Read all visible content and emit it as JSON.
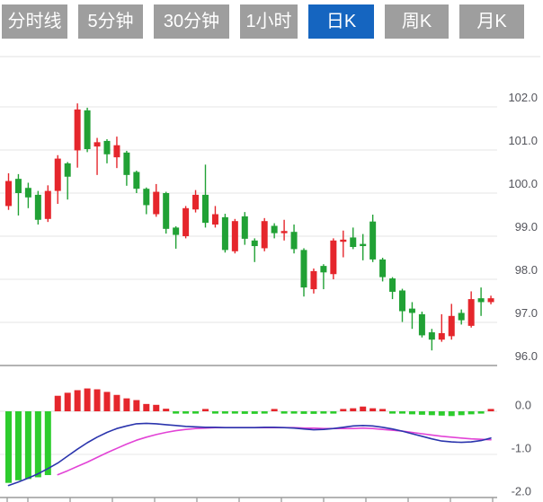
{
  "toolbar": {
    "tabs": [
      {
        "id": "tab-timeline",
        "label": "分时线",
        "active": false
      },
      {
        "id": "tab-5min",
        "label": "5分钟",
        "active": false
      },
      {
        "id": "tab-30min",
        "label": "30分钟",
        "active": false
      },
      {
        "id": "tab-1hour",
        "label": "1小时",
        "active": false
      },
      {
        "id": "tab-daily-k",
        "label": "日K",
        "active": true
      },
      {
        "id": "tab-weekly-k",
        "label": "周K",
        "active": false
      },
      {
        "id": "tab-monthly-k",
        "label": "月K",
        "active": false
      }
    ],
    "colors": {
      "tab_bg": "#9E9E9E",
      "tab_active_bg": "#1565C0",
      "tab_text": "#FFFFFF"
    }
  },
  "chart_data": {
    "type": "candlestick",
    "title": "",
    "price_axis": {
      "side": "right",
      "ticks": [
        102.0,
        101.0,
        100.0,
        99.0,
        98.0,
        97.0,
        96.0
      ],
      "tick_labels": [
        "102.0",
        "101.0",
        "100.0",
        "99.0",
        "98.0",
        "97.0",
        "96.0"
      ],
      "range": [
        95.8,
        103.2
      ],
      "grid": true
    },
    "candles": [
      {
        "o": 99.7,
        "h": 100.46,
        "l": 99.61,
        "c": 100.28
      },
      {
        "o": 100.33,
        "h": 100.44,
        "l": 99.48,
        "c": 100.0
      },
      {
        "o": 100.12,
        "h": 100.24,
        "l": 99.65,
        "c": 99.9
      },
      {
        "o": 99.96,
        "h": 100.05,
        "l": 99.27,
        "c": 99.38
      },
      {
        "o": 99.4,
        "h": 100.18,
        "l": 99.33,
        "c": 100.05
      },
      {
        "o": 100.05,
        "h": 100.88,
        "l": 99.75,
        "c": 100.8
      },
      {
        "o": 100.69,
        "h": 100.72,
        "l": 99.85,
        "c": 100.38
      },
      {
        "o": 100.99,
        "h": 102.08,
        "l": 100.59,
        "c": 101.94
      },
      {
        "o": 101.92,
        "h": 101.98,
        "l": 100.95,
        "c": 101.02
      },
      {
        "o": 101.08,
        "h": 101.28,
        "l": 100.42,
        "c": 101.18
      },
      {
        "o": 101.21,
        "h": 101.25,
        "l": 100.69,
        "c": 100.9
      },
      {
        "o": 100.83,
        "h": 101.31,
        "l": 100.58,
        "c": 101.11
      },
      {
        "o": 100.94,
        "h": 100.98,
        "l": 100.17,
        "c": 100.42
      },
      {
        "o": 100.49,
        "h": 100.52,
        "l": 100.0,
        "c": 100.1
      },
      {
        "o": 100.1,
        "h": 100.13,
        "l": 99.51,
        "c": 99.72
      },
      {
        "o": 99.51,
        "h": 100.21,
        "l": 99.45,
        "c": 100.03
      },
      {
        "o": 100.0,
        "h": 100.03,
        "l": 99.06,
        "c": 99.17
      },
      {
        "o": 99.2,
        "h": 99.23,
        "l": 98.71,
        "c": 99.03
      },
      {
        "o": 99.0,
        "h": 99.7,
        "l": 98.95,
        "c": 99.65
      },
      {
        "o": 99.62,
        "h": 100.07,
        "l": 99.55,
        "c": 99.96
      },
      {
        "o": 99.96,
        "h": 100.66,
        "l": 99.2,
        "c": 99.31
      },
      {
        "o": 99.27,
        "h": 99.7,
        "l": 99.2,
        "c": 99.51
      },
      {
        "o": 99.44,
        "h": 99.52,
        "l": 98.62,
        "c": 98.68
      },
      {
        "o": 98.65,
        "h": 99.4,
        "l": 98.6,
        "c": 99.35
      },
      {
        "o": 99.46,
        "h": 99.56,
        "l": 98.8,
        "c": 98.94
      },
      {
        "o": 98.9,
        "h": 98.95,
        "l": 98.4,
        "c": 98.77
      },
      {
        "o": 98.72,
        "h": 99.42,
        "l": 98.65,
        "c": 99.35
      },
      {
        "o": 99.24,
        "h": 99.3,
        "l": 98.95,
        "c": 99.07
      },
      {
        "o": 99.08,
        "h": 99.38,
        "l": 98.9,
        "c": 99.12
      },
      {
        "o": 99.1,
        "h": 99.27,
        "l": 98.6,
        "c": 98.7
      },
      {
        "o": 98.68,
        "h": 98.72,
        "l": 97.6,
        "c": 97.81
      },
      {
        "o": 97.77,
        "h": 98.25,
        "l": 97.67,
        "c": 98.19
      },
      {
        "o": 98.31,
        "h": 98.35,
        "l": 97.77,
        "c": 98.16
      },
      {
        "o": 98.12,
        "h": 98.95,
        "l": 98.0,
        "c": 98.9
      },
      {
        "o": 98.87,
        "h": 99.13,
        "l": 98.51,
        "c": 98.92
      },
      {
        "o": 98.97,
        "h": 99.2,
        "l": 98.7,
        "c": 98.75
      },
      {
        "o": 98.82,
        "h": 99.05,
        "l": 98.44,
        "c": 98.78
      },
      {
        "o": 99.34,
        "h": 99.5,
        "l": 98.4,
        "c": 98.46
      },
      {
        "o": 98.46,
        "h": 98.5,
        "l": 97.95,
        "c": 98.05
      },
      {
        "o": 98.02,
        "h": 98.05,
        "l": 97.54,
        "c": 97.71
      },
      {
        "o": 97.74,
        "h": 97.78,
        "l": 97.01,
        "c": 97.26
      },
      {
        "o": 97.32,
        "h": 97.47,
        "l": 96.85,
        "c": 97.22
      },
      {
        "o": 97.19,
        "h": 97.25,
        "l": 96.65,
        "c": 96.7
      },
      {
        "o": 96.77,
        "h": 96.85,
        "l": 96.35,
        "c": 96.6
      },
      {
        "o": 96.6,
        "h": 97.19,
        "l": 96.55,
        "c": 96.75
      },
      {
        "o": 96.68,
        "h": 97.43,
        "l": 96.6,
        "c": 97.15
      },
      {
        "o": 97.22,
        "h": 97.3,
        "l": 96.95,
        "c": 97.05
      },
      {
        "o": 96.92,
        "h": 97.72,
        "l": 96.88,
        "c": 97.54
      },
      {
        "o": 97.56,
        "h": 97.81,
        "l": 97.15,
        "c": 97.47
      },
      {
        "o": 97.47,
        "h": 97.62,
        "l": 97.42,
        "c": 97.56
      }
    ],
    "macd": {
      "axis_ticks": [
        0.0,
        -1.0,
        -2.0
      ],
      "axis_tick_labels": [
        "0.0",
        "-1.0",
        "-2.0"
      ],
      "histogram": [
        -1.66,
        -1.6,
        -1.57,
        -1.53,
        -1.48,
        0.36,
        0.43,
        0.49,
        0.53,
        0.51,
        0.45,
        0.38,
        0.3,
        0.26,
        0.17,
        0.15,
        0.06,
        -0.04,
        -0.04,
        -0.02,
        0.04,
        -0.03,
        -0.05,
        -0.05,
        -0.06,
        -0.06,
        -0.04,
        0.03,
        -0.04,
        -0.05,
        -0.06,
        -0.06,
        -0.05,
        -0.03,
        0.04,
        0.07,
        0.11,
        0.07,
        0.04,
        -0.02,
        -0.05,
        -0.07,
        -0.08,
        -0.09,
        -0.1,
        -0.11,
        -0.09,
        -0.07,
        -0.04,
        0.04
      ],
      "dif": [
        -1.72,
        -1.64,
        -1.55,
        -1.45,
        -1.33,
        -1.2,
        -1.04,
        -0.88,
        -0.73,
        -0.6,
        -0.49,
        -0.4,
        -0.34,
        -0.29,
        -0.28,
        -0.29,
        -0.31,
        -0.33,
        -0.35,
        -0.36,
        -0.37,
        -0.37,
        -0.38,
        -0.38,
        -0.38,
        -0.38,
        -0.37,
        -0.37,
        -0.38,
        -0.39,
        -0.41,
        -0.43,
        -0.42,
        -0.4,
        -0.37,
        -0.34,
        -0.33,
        -0.34,
        -0.37,
        -0.41,
        -0.46,
        -0.52,
        -0.58,
        -0.64,
        -0.69,
        -0.71,
        -0.72,
        -0.71,
        -0.68,
        -0.62
      ],
      "dea": [
        null,
        null,
        null,
        null,
        null,
        -1.47,
        -1.38,
        -1.28,
        -1.18,
        -1.07,
        -0.96,
        -0.86,
        -0.76,
        -0.67,
        -0.6,
        -0.54,
        -0.49,
        -0.45,
        -0.42,
        -0.4,
        -0.39,
        -0.38,
        -0.38,
        -0.38,
        -0.38,
        -0.38,
        -0.38,
        -0.38,
        -0.38,
        -0.38,
        -0.39,
        -0.39,
        -0.4,
        -0.4,
        -0.4,
        -0.4,
        -0.39,
        -0.4,
        -0.42,
        -0.44,
        -0.46,
        -0.49,
        -0.52,
        -0.55,
        -0.58,
        -0.6,
        -0.62,
        -0.64,
        -0.65,
        -0.66
      ]
    },
    "colors": {
      "up": "#E5262C",
      "down": "#21A135",
      "macd_up": "#E5262C",
      "macd_down": "#2DCC2D",
      "dif_line": "#2B35AD",
      "dea_line": "#E243D6",
      "grid": "#E4E4E4",
      "axis": "#9C9C9C",
      "tick_text": "#54555C"
    },
    "legend": null,
    "grid": true
  }
}
